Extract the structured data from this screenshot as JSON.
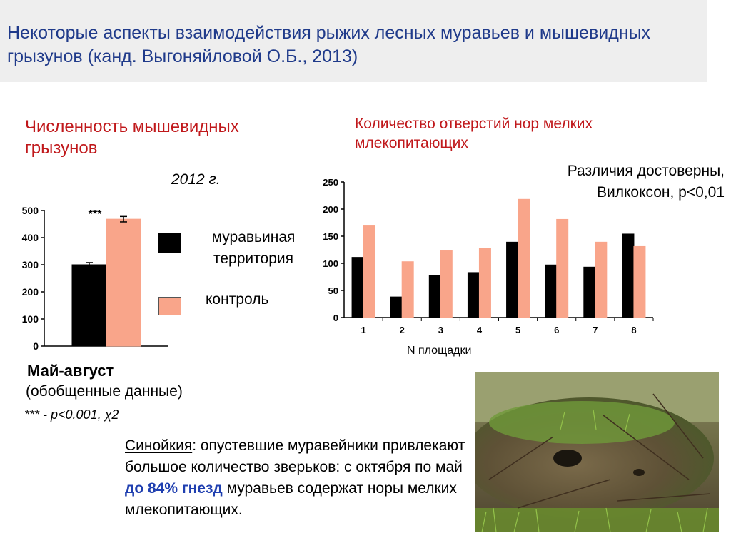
{
  "slide": {
    "title": "Некоторые аспекты взаимодействия рыжих лесных муравьев и мышевидных грызунов (канд. Выгоняйловой О.Б., 2013)"
  },
  "left_panel": {
    "heading": "Численность мышевидных грызунов",
    "year": "2012 г.",
    "legend": {
      "ant": "муравьиная территория",
      "control": "контроль"
    },
    "period_label": "Май-август",
    "period_sub": "(обобщенные данные)",
    "stat_note": "*** - p<0.001, χ2",
    "significance_mark": "***"
  },
  "right_panel": {
    "heading": "Количество отверстий нор мелких млекопитающих",
    "signif_note": "Различия достоверны, Вилкоксон, p<0,01",
    "xlabel": "N площадки"
  },
  "body": {
    "term": "Синойкия",
    "part1": ": опустевшие муравейники привлекают большое количество зверьков: с октября по май ",
    "highlight": "до 84% гнезд",
    "part2": " муравьев содержат норы мелких млекопитающих."
  },
  "colors": {
    "ant": "#000000",
    "control": "#f9a58a",
    "title": "#1f3a8a",
    "heading": "#c0181b"
  },
  "chart_data": [
    {
      "type": "bar",
      "title": "",
      "categories": [
        ""
      ],
      "series": [
        {
          "name": "муравьиная территория",
          "values": [
            300
          ],
          "error": [
            8
          ]
        },
        {
          "name": "контроль",
          "values": [
            468
          ],
          "error": [
            10
          ]
        }
      ],
      "ylim": [
        0,
        500
      ],
      "yticks": [
        "0",
        "100",
        "200",
        "300",
        "400",
        "500"
      ],
      "grid": false
    },
    {
      "type": "bar",
      "title": "",
      "categories": [
        "1",
        "2",
        "3",
        "4",
        "5",
        "6",
        "7",
        "8"
      ],
      "series": [
        {
          "name": "муравьиная территория",
          "values": [
            111,
            38,
            78,
            83,
            139,
            97,
            93,
            154
          ]
        },
        {
          "name": "контроль",
          "values": [
            169,
            103,
            123,
            127,
            218,
            181,
            139,
            131
          ]
        }
      ],
      "ylim": [
        0,
        250
      ],
      "yticks": [
        "0",
        "50",
        "100",
        "150",
        "200",
        "250"
      ],
      "xlabel": "N площадки",
      "grid": false
    }
  ]
}
